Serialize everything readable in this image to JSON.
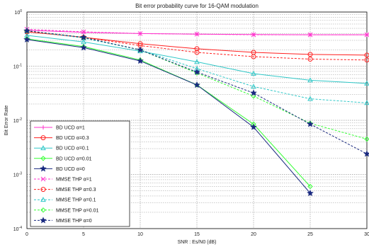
{
  "chart_data": {
    "type": "line",
    "title": "Bit error probability curve for 16-QAM modulation",
    "xlabel": "SNR : Es/N0 (dB)",
    "ylabel": "Bit Error Rate",
    "x": [
      0,
      5,
      10,
      15,
      20,
      25,
      30
    ],
    "xlim": [
      0,
      30
    ],
    "ylim": [
      0.0001,
      1
    ],
    "yscale": "log",
    "grid": true,
    "legend_position": "bottom-left",
    "xticks": [
      "0",
      "5",
      "10",
      "15",
      "20",
      "25",
      "30"
    ],
    "yticks": [
      {
        "value": 1,
        "base": "10",
        "exp": "0"
      },
      {
        "value": 0.1,
        "base": "10",
        "exp": "-1"
      },
      {
        "value": 0.01,
        "base": "10",
        "exp": "-2"
      },
      {
        "value": 0.001,
        "base": "10",
        "exp": "-3"
      },
      {
        "value": 0.0001,
        "base": "10",
        "exp": "-4"
      }
    ],
    "series": [
      {
        "name": "BD UCD α=1",
        "color": "#ff33cc",
        "marker": "plus",
        "dashed": false,
        "values": [
          0.46,
          0.42,
          0.4,
          0.39,
          0.385,
          0.38,
          0.38
        ]
      },
      {
        "name": "BD UCD α=0.3",
        "color": "#ff2020",
        "marker": "circle",
        "dashed": false,
        "values": [
          0.43,
          0.34,
          0.26,
          0.21,
          0.18,
          0.165,
          0.16
        ]
      },
      {
        "name": "BD UCD α=0.1",
        "color": "#30c8c8",
        "marker": "triangle",
        "dashed": false,
        "values": [
          0.37,
          0.28,
          0.19,
          0.12,
          0.073,
          0.055,
          0.048
        ]
      },
      {
        "name": "BD UCD α=0.01",
        "color": "#33ff33",
        "marker": "diamond",
        "dashed": false,
        "values": [
          0.32,
          0.23,
          0.13,
          0.045,
          0.0085,
          0.0006,
          null
        ]
      },
      {
        "name": "BD UCD α=0",
        "color": "#1a2a80",
        "marker": "star",
        "dashed": false,
        "values": [
          0.31,
          0.22,
          0.125,
          0.045,
          0.0075,
          0.00045,
          null
        ]
      },
      {
        "name": "MMSE THP α=1",
        "color": "#ff33cc",
        "marker": "x",
        "dashed": true,
        "values": [
          0.48,
          0.43,
          0.4,
          0.39,
          0.38,
          0.38,
          0.38
        ]
      },
      {
        "name": "MMSE THP α=0.3",
        "color": "#ff2020",
        "marker": "circle",
        "dashed": true,
        "values": [
          0.44,
          0.34,
          0.24,
          0.18,
          0.15,
          0.135,
          0.13
        ]
      },
      {
        "name": "MMSE THP α=0.1",
        "color": "#30c8c8",
        "marker": "triangle",
        "dashed": true,
        "values": [
          0.45,
          0.33,
          0.2,
          0.09,
          0.042,
          0.025,
          0.021
        ]
      },
      {
        "name": "MMSE THP α=0.01",
        "color": "#33ff33",
        "marker": "diamond",
        "dashed": true,
        "values": [
          0.45,
          0.34,
          0.2,
          0.075,
          0.028,
          0.0088,
          0.0045
        ]
      },
      {
        "name": "MMSE THP α=0",
        "color": "#1a2a80",
        "marker": "star",
        "dashed": true,
        "values": [
          0.45,
          0.34,
          0.2,
          0.078,
          0.032,
          0.0085,
          0.0024
        ]
      }
    ]
  }
}
